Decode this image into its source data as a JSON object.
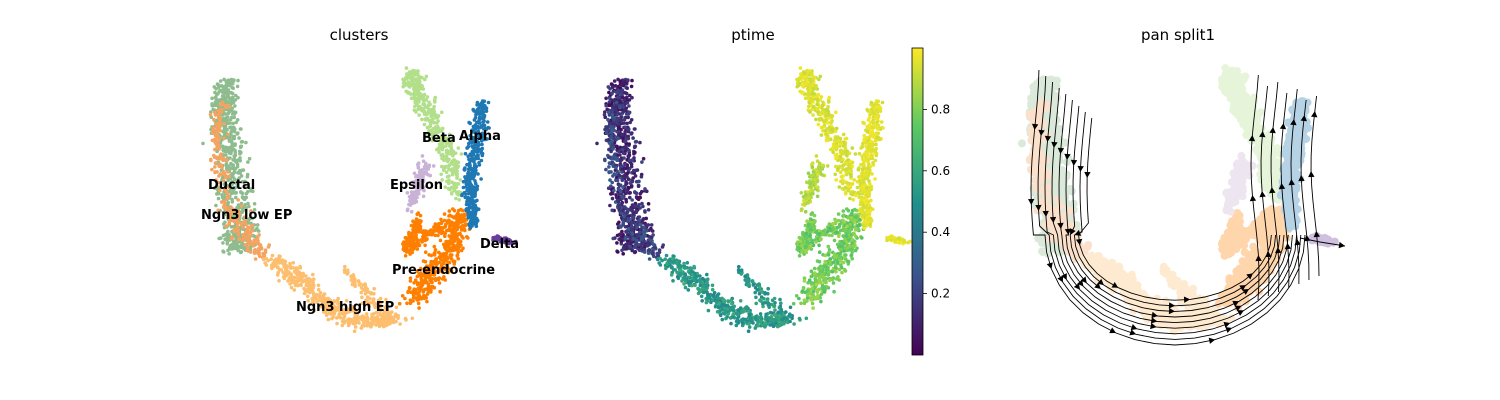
{
  "chart_data": [
    {
      "type": "scatter",
      "title": "clusters",
      "legend": "on-data",
      "clusters": [
        {
          "name": "Ductal",
          "color": "#8fbc8f"
        },
        {
          "name": "Ngn3 low EP",
          "color": "#f4a460"
        },
        {
          "name": "Ngn3 high EP",
          "color": "#fdbf6f"
        },
        {
          "name": "Pre-endocrine",
          "color": "#ff7f00"
        },
        {
          "name": "Beta",
          "color": "#b2df8a"
        },
        {
          "name": "Alpha",
          "color": "#1f78b4"
        },
        {
          "name": "Epsilon",
          "color": "#cab2d6"
        },
        {
          "name": "Delta",
          "color": "#6a3d9a"
        }
      ]
    },
    {
      "type": "scatter",
      "title": "ptime",
      "colormap": "viridis",
      "colorbar": {
        "range": [
          0.0,
          1.0
        ],
        "ticks": [
          "0.2",
          "0.4",
          "0.6",
          "0.8"
        ]
      }
    },
    {
      "type": "scatter",
      "title": "pan split1",
      "overlay": "streamlines"
    }
  ]
}
